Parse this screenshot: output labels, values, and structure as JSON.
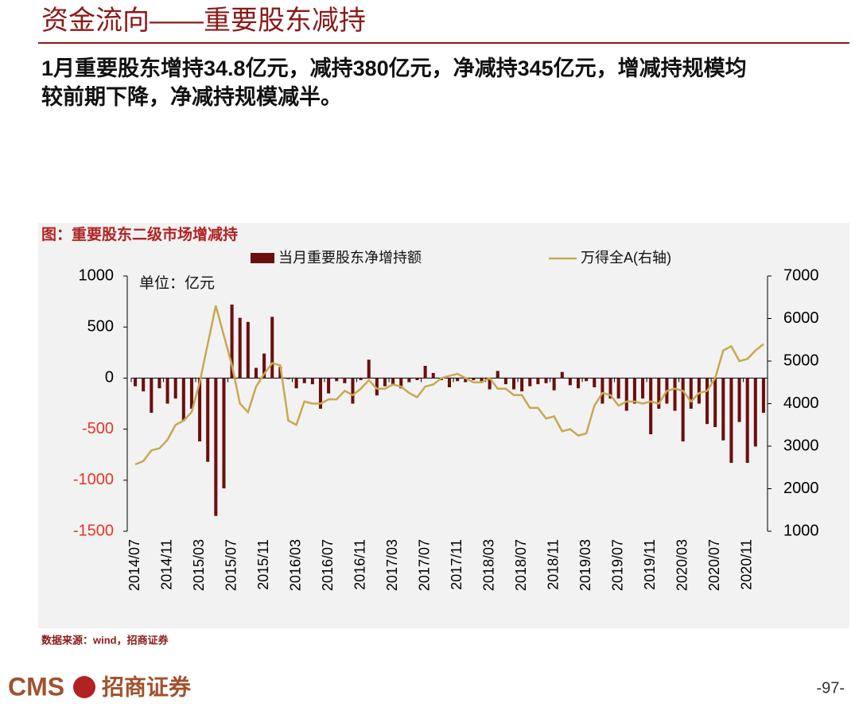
{
  "header": {
    "title": "资金流向——重要股东减持",
    "lines": [
      "1月重要股东增持34.8亿元，减持380亿元，净减持345亿元，增减持规模均",
      "较前期下降，净减持规模减半。"
    ]
  },
  "chart_data": {
    "type": "bar",
    "title": "图：重要股东二级市场增减持",
    "annotation": "单位：亿元",
    "categories": [
      "2014/07",
      null,
      null,
      null,
      "2014/11",
      null,
      null,
      null,
      "2015/03",
      null,
      null,
      null,
      "2015/07",
      null,
      null,
      null,
      "2015/11",
      null,
      null,
      null,
      "2016/03",
      null,
      null,
      null,
      "2016/07",
      null,
      null,
      null,
      "2016/11",
      null,
      null,
      null,
      "2017/03",
      null,
      null,
      null,
      "2017/07",
      null,
      null,
      null,
      "2017/11",
      null,
      null,
      null,
      "2018/03",
      null,
      null,
      null,
      "2018/07",
      null,
      null,
      null,
      "2018/11",
      null,
      null,
      null,
      "2019/03",
      null,
      null,
      null,
      "2019/07",
      null,
      null,
      null,
      "2019/11",
      null,
      null,
      null,
      "2020/03",
      null,
      null,
      null,
      "2020/07",
      null,
      null,
      null,
      "2020/11",
      null,
      null
    ],
    "series": [
      {
        "name": "当月重要股东净增持额",
        "color": "#6b0f0f",
        "values": [
          -80,
          -130,
          -340,
          -100,
          -250,
          -200,
          -420,
          -300,
          -620,
          -820,
          -1350,
          -1080,
          720,
          590,
          550,
          100,
          240,
          600,
          110,
          -10,
          -100,
          -50,
          -60,
          -300,
          -150,
          -30,
          -50,
          -250,
          -20,
          180,
          -170,
          -80,
          -60,
          -100,
          -40,
          -20,
          120,
          50,
          -20,
          -90,
          -30,
          -40,
          -20,
          -30,
          -110,
          70,
          -60,
          -110,
          -130,
          -80,
          -60,
          -50,
          -120,
          60,
          -70,
          -100,
          -30,
          -90,
          -250,
          -200,
          -200,
          -320,
          -250,
          -200,
          -550,
          -300,
          -250,
          -320,
          -620,
          -300,
          -250,
          -450,
          -480,
          -610,
          -830,
          -430,
          -830,
          -670,
          -340
        ]
      },
      {
        "name": "万得全A(右轴)",
        "color": "#c8a850",
        "axis": "y2",
        "values": [
          2570,
          2650,
          2900,
          2950,
          3150,
          3500,
          3600,
          3800,
          4500,
          5400,
          6300,
          5600,
          4900,
          4000,
          3800,
          4400,
          4700,
          4950,
          4900,
          3600,
          3500,
          4050,
          4000,
          4000,
          4100,
          4100,
          4300,
          4200,
          4350,
          4550,
          4350,
          4350,
          4450,
          4400,
          4250,
          4150,
          4400,
          4450,
          4600,
          4650,
          4700,
          4600,
          4500,
          4500,
          4600,
          4350,
          4350,
          4200,
          4200,
          3900,
          3900,
          3650,
          3700,
          3350,
          3400,
          3250,
          3300,
          3950,
          4250,
          4200,
          3950,
          4050,
          4050,
          4000,
          4050,
          4000,
          4300,
          4350,
          4300,
          4050,
          4250,
          4300,
          4600,
          5250,
          5350,
          5000,
          5050,
          5250,
          5400
        ]
      }
    ],
    "ylim": [
      -1500,
      1000
    ],
    "yticks": [
      -1500,
      -1000,
      -500,
      0,
      500,
      1000
    ],
    "y2lim": [
      1000,
      7000
    ],
    "y2ticks": [
      1000,
      2000,
      3000,
      4000,
      5000,
      6000,
      7000
    ]
  },
  "footer": {
    "source": "数据来源：wind，招商证券",
    "logo": "CMS",
    "logo_cn": "招商证券",
    "page": "-97-"
  }
}
